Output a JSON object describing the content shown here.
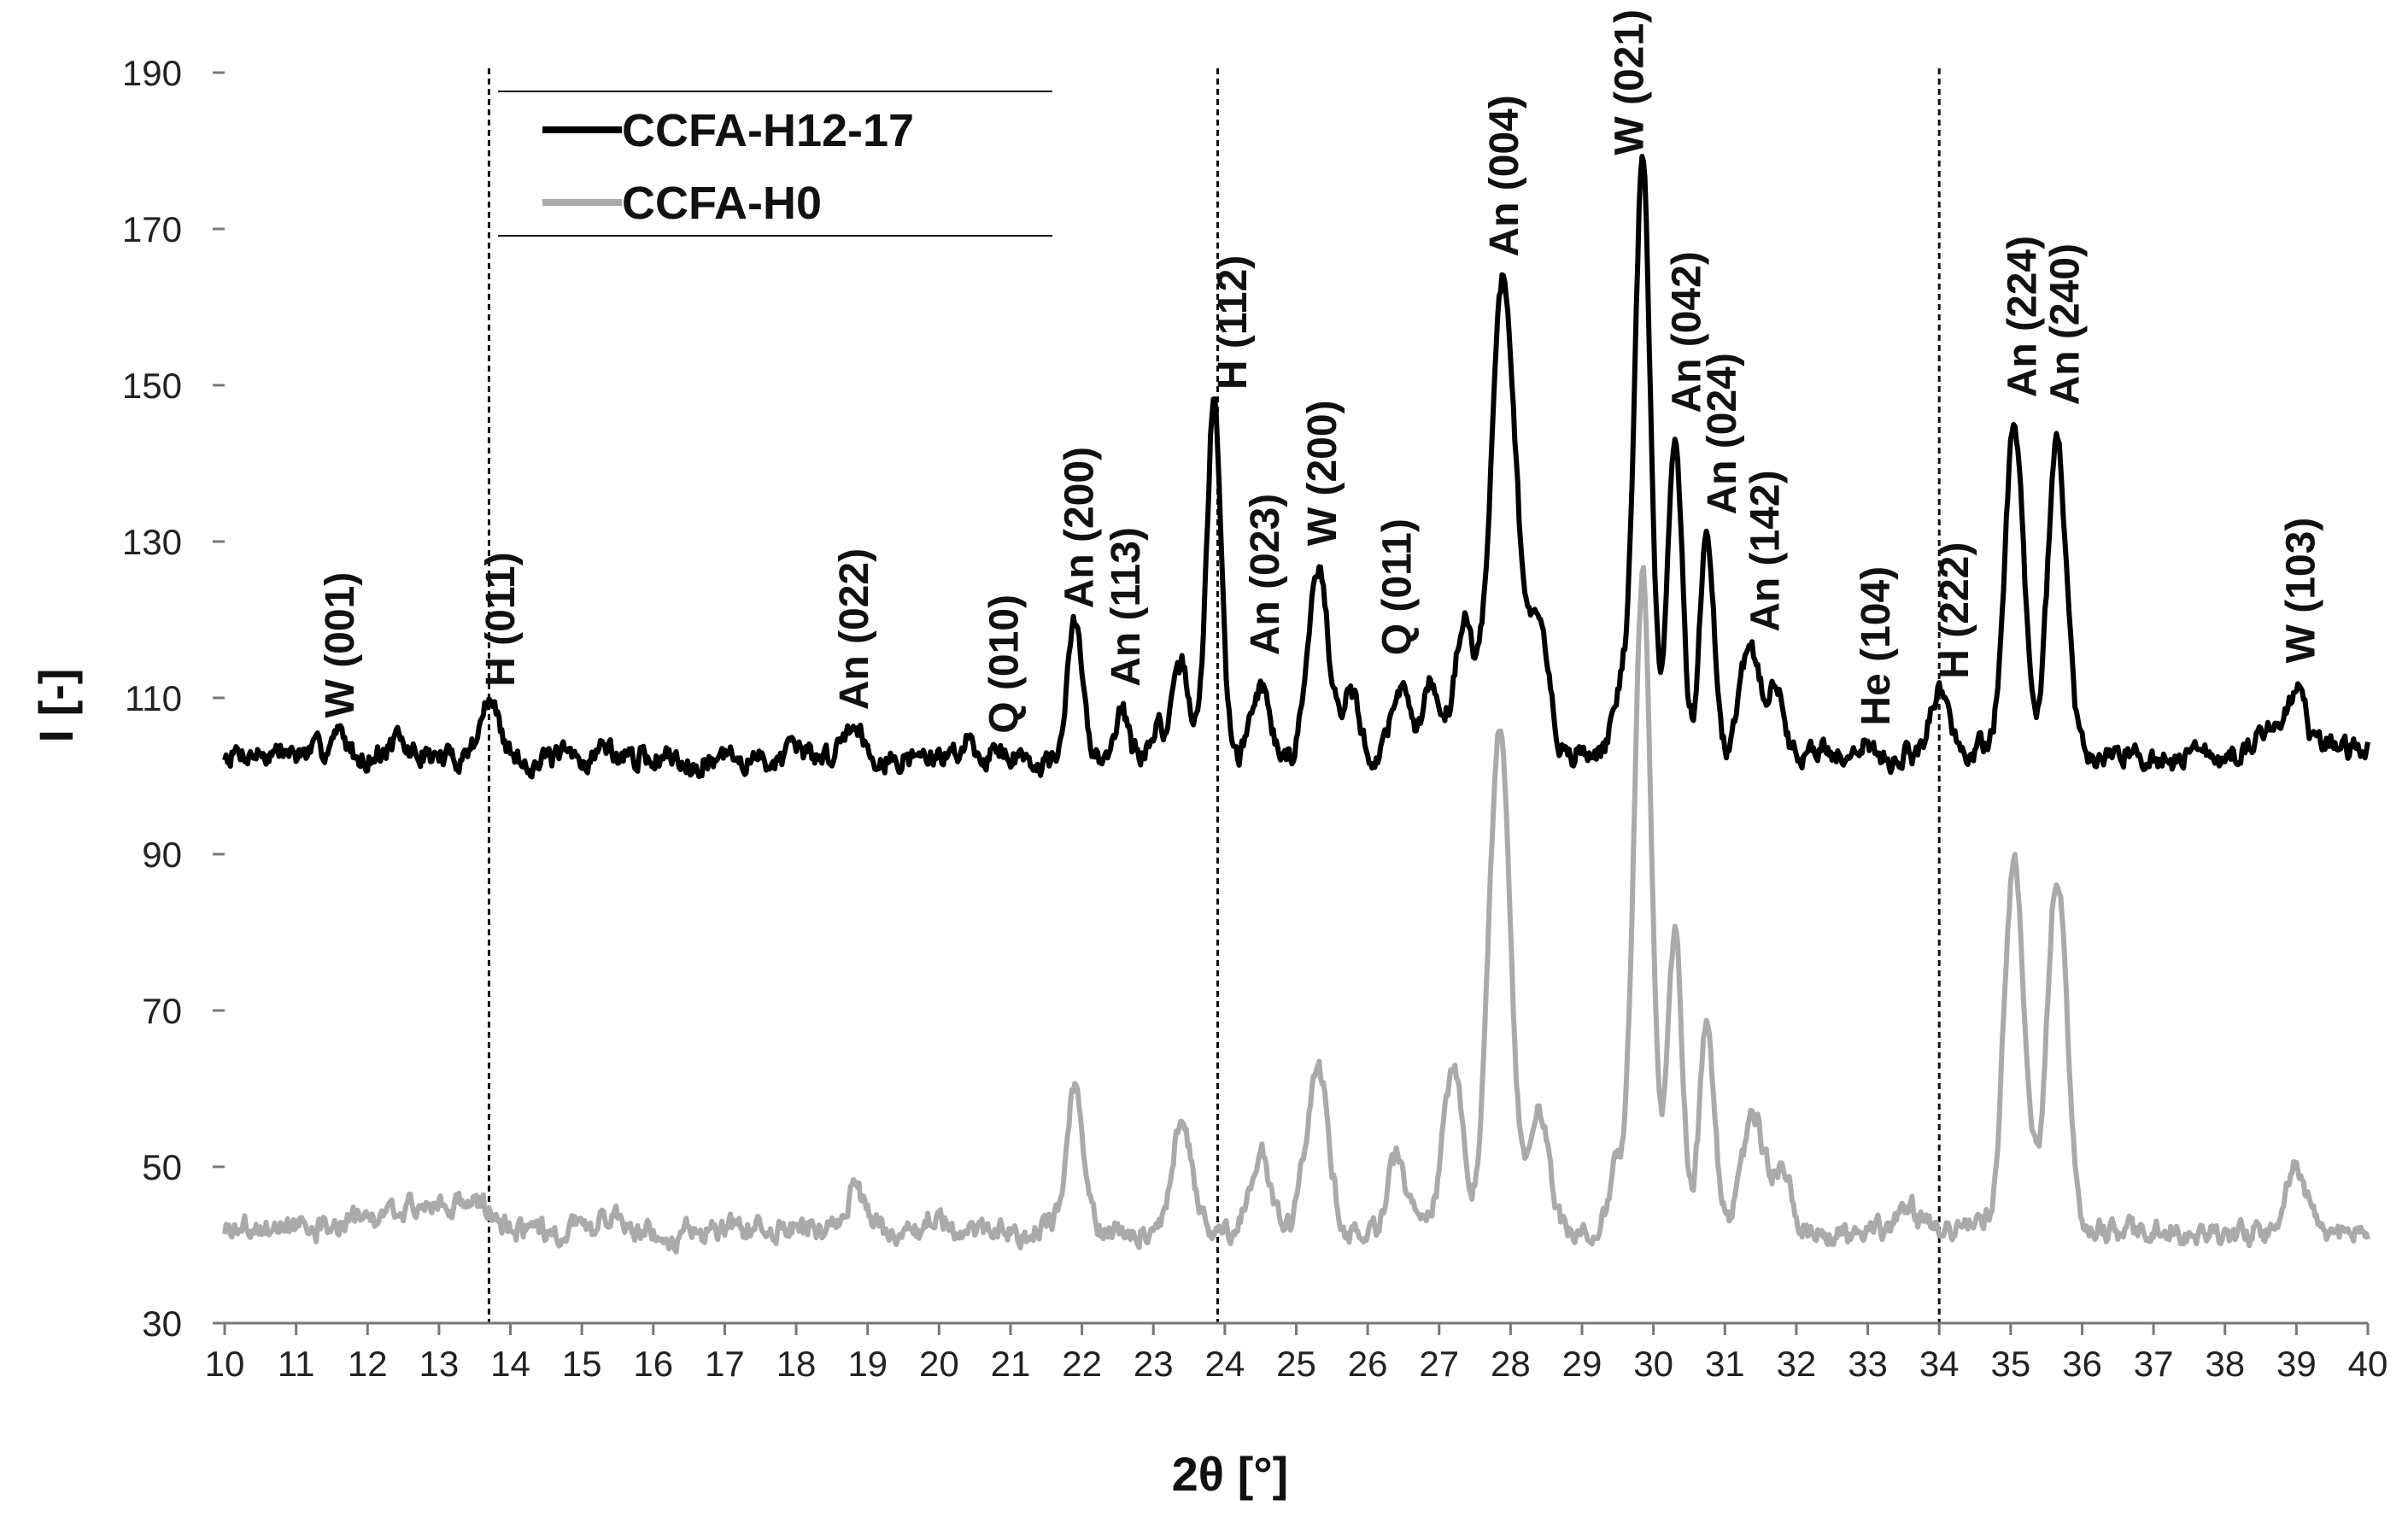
{
  "chart_data": {
    "type": "line",
    "xlabel": "2θ [°]",
    "ylabel": "I [-]",
    "xlim": [
      10,
      40
    ],
    "ylim": [
      30,
      190
    ],
    "x_ticks": [
      10,
      11,
      12,
      13,
      14,
      15,
      16,
      17,
      18,
      19,
      20,
      21,
      22,
      23,
      24,
      25,
      26,
      27,
      28,
      29,
      30,
      31,
      32,
      33,
      34,
      35,
      36,
      37,
      38,
      39,
      40
    ],
    "y_ticks": [
      30,
      50,
      70,
      90,
      110,
      130,
      150,
      170,
      190
    ],
    "grid": false,
    "legend": {
      "placement": "top-left"
    },
    "vlines": [
      13.7,
      23.9,
      34.0
    ],
    "series": [
      {
        "name": "CCFA-H12-17",
        "color": "#000000",
        "baseline": 102.5,
        "peaks": [
          [
            11.6,
            3,
            0.12
          ],
          [
            12.4,
            1.5,
            0.1
          ],
          [
            13.7,
            7,
            0.14
          ],
          [
            15.3,
            1.5,
            0.1
          ],
          [
            18.8,
            4,
            0.15
          ],
          [
            20.4,
            2,
            0.12
          ],
          [
            20.9,
            1.5,
            0.1
          ],
          [
            21.9,
            17,
            0.1
          ],
          [
            22.55,
            6,
            0.09
          ],
          [
            23.05,
            4,
            0.1
          ],
          [
            23.4,
            11,
            0.12
          ],
          [
            23.85,
            46,
            0.1
          ],
          [
            24.5,
            10,
            0.13
          ],
          [
            25.3,
            25,
            0.14
          ],
          [
            25.75,
            8,
            0.12
          ],
          [
            26.45,
            9,
            0.12
          ],
          [
            26.9,
            9,
            0.14
          ],
          [
            27.35,
            17,
            0.13
          ],
          [
            27.9,
            61,
            0.18
          ],
          [
            28.4,
            16,
            0.14
          ],
          [
            29.55,
            10,
            0.12
          ],
          [
            29.85,
            76,
            0.11
          ],
          [
            30.3,
            41,
            0.1
          ],
          [
            30.75,
            29,
            0.1
          ],
          [
            31.35,
            14,
            0.13
          ],
          [
            31.7,
            8,
            0.12
          ],
          [
            32.35,
            1.5,
            0.1
          ],
          [
            33.0,
            3,
            0.1
          ],
          [
            33.5,
            1,
            0.08
          ],
          [
            34.0,
            9,
            0.12
          ],
          [
            34.65,
            1,
            0.1
          ],
          [
            35.05,
            43,
            0.13
          ],
          [
            35.65,
            41,
            0.13
          ],
          [
            36.5,
            2,
            0.12
          ],
          [
            38.6,
            3,
            0.15
          ],
          [
            39.0,
            9,
            0.14
          ],
          [
            39.5,
            2,
            0.1
          ]
        ],
        "noise": 1.5,
        "seed": 7
      },
      {
        "name": "CCFA-H0",
        "color": "#aaaaaa",
        "baseline": 42,
        "peaks": [
          [
            12.8,
            3,
            0.5
          ],
          [
            13.5,
            3,
            0.2
          ],
          [
            15.4,
            2.5,
            0.12
          ],
          [
            17.0,
            1,
            0.1
          ],
          [
            18.8,
            5,
            0.15
          ],
          [
            20.0,
            2,
            0.12
          ],
          [
            21.9,
            18,
            0.12
          ],
          [
            23.4,
            13,
            0.14
          ],
          [
            24.5,
            10,
            0.14
          ],
          [
            25.3,
            21,
            0.15
          ],
          [
            26.4,
            9,
            0.12
          ],
          [
            27.2,
            20,
            0.14
          ],
          [
            27.85,
            65,
            0.15
          ],
          [
            28.4,
            16,
            0.13
          ],
          [
            29.5,
            8,
            0.12
          ],
          [
            29.85,
            84,
            0.12
          ],
          [
            30.3,
            38,
            0.1
          ],
          [
            30.75,
            26,
            0.1
          ],
          [
            31.4,
            14,
            0.15
          ],
          [
            31.8,
            8,
            0.14
          ],
          [
            33.5,
            3,
            0.12
          ],
          [
            35.05,
            47,
            0.14
          ],
          [
            35.65,
            45,
            0.14
          ],
          [
            39.0,
            9,
            0.15
          ]
        ],
        "noise": 1.5,
        "seed": 3
      }
    ],
    "annotations": [
      {
        "x": 11.6,
        "y": 107,
        "text": "W (001)"
      },
      {
        "x": 13.85,
        "y": 111,
        "text": "H (011)"
      },
      {
        "x": 18.8,
        "y": 108,
        "text": "An (022)"
      },
      {
        "x": 20.9,
        "y": 105,
        "text": "Q (010)"
      },
      {
        "x": 21.95,
        "y": 121,
        "text": "An (200)"
      },
      {
        "x": 22.6,
        "y": 111,
        "text": "An (113)"
      },
      {
        "x": 24.1,
        "y": 149,
        "text": "H (112)"
      },
      {
        "x": 24.55,
        "y": 115,
        "text": "An (023)"
      },
      {
        "x": 25.35,
        "y": 129,
        "text": "W (200)"
      },
      {
        "x": 26.4,
        "y": 115,
        "text": "Q (011)"
      },
      {
        "x": 27.9,
        "y": 166,
        "text": "An (004)"
      },
      {
        "x": 29.65,
        "y": 179,
        "text": "W (021)"
      },
      {
        "x": 30.45,
        "y": 146,
        "text": "An (042)"
      },
      {
        "x": 30.95,
        "y": 133,
        "text": "An (024)"
      },
      {
        "x": 31.55,
        "y": 118,
        "text": "An (142)"
      },
      {
        "x": 33.1,
        "y": 106,
        "text": "He (104)"
      },
      {
        "x": 34.2,
        "y": 112,
        "text": "H (222)"
      },
      {
        "x": 35.15,
        "y": 148,
        "text": "An (224)"
      },
      {
        "x": 35.75,
        "y": 147,
        "text": "An (240)"
      },
      {
        "x": 39.05,
        "y": 114,
        "text": "W (103)"
      }
    ]
  }
}
